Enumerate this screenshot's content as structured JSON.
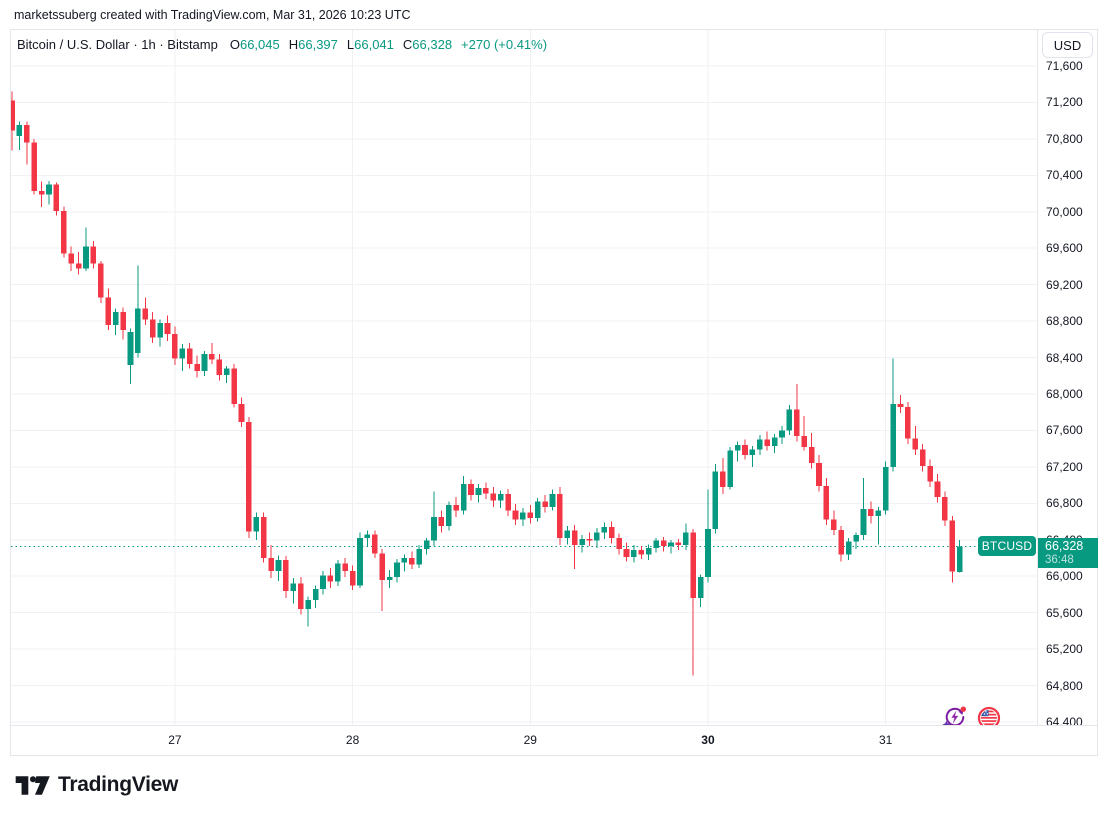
{
  "attribution": "marketssuberg created with TradingView.com, Mar 31, 2026 10:23 UTC",
  "legend": {
    "title": "Bitcoin / U.S. Dollar · 1h · Bitstamp",
    "items": [
      {
        "label": "O",
        "value": "66,045"
      },
      {
        "label": "H",
        "value": "66,397"
      },
      {
        "label": "L",
        "value": "66,041"
      },
      {
        "label": "C",
        "value": "66,328"
      }
    ],
    "change": "+270 (+0.41%)"
  },
  "price_scale": {
    "currency_button": "USD",
    "price_label": "66,328",
    "countdown": "36:48"
  },
  "symbol_badge": "BTCUSD",
  "logo_text": "TradingView",
  "icons": [
    "ai-refresh-bolt-icon",
    "us-flag-circle-icon"
  ],
  "chart_data": {
    "type": "candlestick",
    "title": "Bitcoin / U.S. Dollar",
    "symbol": "BTCUSD",
    "interval": "1h",
    "exchange": "Bitstamp",
    "currency": "USD",
    "current_candle": {
      "open": 66045,
      "high": 66397,
      "low": 66041,
      "close": 66328,
      "change": "+270",
      "change_pct": "+0.41%"
    },
    "last_price": 66328,
    "countdown": "36:48",
    "colors": {
      "up": "#089981",
      "down": "#F23645",
      "grid": "#F0F1F4",
      "price_line": "#089981",
      "badge": "#089981"
    },
    "y_axis": {
      "min": 64400,
      "max": 71600,
      "step": 400,
      "grid": true,
      "side": "right",
      "ticks": [
        {
          "v": 71600,
          "label": "71,600"
        },
        {
          "v": 71200,
          "label": "71,200"
        },
        {
          "v": 70800,
          "label": "70,800"
        },
        {
          "v": 70400,
          "label": "70,400"
        },
        {
          "v": 70000,
          "label": "70,000"
        },
        {
          "v": 69600,
          "label": "69,600"
        },
        {
          "v": 69200,
          "label": "69,200"
        },
        {
          "v": 68800,
          "label": "68,800"
        },
        {
          "v": 68400,
          "label": "68,400"
        },
        {
          "v": 68000,
          "label": "68,000"
        },
        {
          "v": 67600,
          "label": "67,600"
        },
        {
          "v": 67200,
          "label": "67,200"
        },
        {
          "v": 66800,
          "label": "66,800"
        },
        {
          "v": 66400,
          "label": "66,400"
        },
        {
          "v": 66000,
          "label": "66,000"
        },
        {
          "v": 65600,
          "label": "65,600"
        },
        {
          "v": 65200,
          "label": "65,200"
        },
        {
          "v": 64800,
          "label": "64,800"
        },
        {
          "v": 64400,
          "label": "64,400"
        }
      ]
    },
    "x_axis": {
      "unit": "day",
      "grid": true,
      "days": [
        {
          "label": "27",
          "index": 22,
          "bold": false
        },
        {
          "label": "28",
          "index": 46,
          "bold": false
        },
        {
          "label": "29",
          "index": 70,
          "bold": false
        },
        {
          "label": "30",
          "index": 94,
          "bold": true
        },
        {
          "label": "31",
          "index": 118,
          "bold": false
        }
      ]
    },
    "candles": [
      [
        71220,
        71320,
        70670,
        70890
      ],
      [
        70830,
        70990,
        70680,
        70950
      ],
      [
        70950,
        70990,
        70520,
        70760
      ],
      [
        70760,
        70800,
        70190,
        70230
      ],
      [
        70230,
        70330,
        70050,
        70190
      ],
      [
        70190,
        70340,
        70080,
        70300
      ],
      [
        70300,
        70320,
        69960,
        70010
      ],
      [
        70010,
        70060,
        69500,
        69540
      ],
      [
        69540,
        69620,
        69350,
        69430
      ],
      [
        69430,
        69560,
        69310,
        69380
      ],
      [
        69380,
        69830,
        69350,
        69620
      ],
      [
        69620,
        69680,
        69380,
        69430
      ],
      [
        69430,
        69460,
        69000,
        69060
      ],
      [
        69060,
        69160,
        68700,
        68760
      ],
      [
        68760,
        68940,
        68650,
        68900
      ],
      [
        68900,
        68950,
        68600,
        68700
      ],
      [
        68320,
        68720,
        68110,
        68680
      ],
      [
        68450,
        69410,
        68400,
        68940
      ],
      [
        68940,
        69060,
        68760,
        68820
      ],
      [
        68820,
        68900,
        68560,
        68620
      ],
      [
        68620,
        68820,
        68520,
        68780
      ],
      [
        68780,
        68860,
        68580,
        68660
      ],
      [
        68660,
        68740,
        68320,
        68390
      ],
      [
        68390,
        68550,
        68250,
        68500
      ],
      [
        68500,
        68560,
        68280,
        68330
      ],
      [
        68330,
        68420,
        68180,
        68250
      ],
      [
        68250,
        68470,
        68200,
        68440
      ],
      [
        68440,
        68560,
        68330,
        68380
      ],
      [
        68380,
        68440,
        68150,
        68210
      ],
      [
        68210,
        68310,
        68120,
        68280
      ],
      [
        68280,
        68330,
        67850,
        67890
      ],
      [
        67890,
        67960,
        67640,
        67690
      ],
      [
        67690,
        67750,
        66420,
        66490
      ],
      [
        66490,
        66700,
        66400,
        66650
      ],
      [
        66650,
        66700,
        66150,
        66200
      ],
      [
        66200,
        66340,
        65980,
        66060
      ],
      [
        66060,
        66230,
        65950,
        66180
      ],
      [
        66180,
        66220,
        65760,
        65840
      ],
      [
        65840,
        65980,
        65700,
        65920
      ],
      [
        65920,
        65990,
        65580,
        65640
      ],
      [
        65640,
        65780,
        65450,
        65740
      ],
      [
        65740,
        65900,
        65650,
        65860
      ],
      [
        65860,
        66060,
        65800,
        66010
      ],
      [
        66010,
        66090,
        65870,
        65940
      ],
      [
        65940,
        66180,
        65890,
        66140
      ],
      [
        66140,
        66200,
        65990,
        66060
      ],
      [
        66060,
        66120,
        65850,
        65900
      ],
      [
        65900,
        66480,
        65870,
        66420
      ],
      [
        66420,
        66500,
        66330,
        66460
      ],
      [
        66460,
        66500,
        66200,
        66250
      ],
      [
        66250,
        66300,
        65620,
        65960
      ],
      [
        65960,
        66070,
        65870,
        65990
      ],
      [
        65990,
        66190,
        65930,
        66150
      ],
      [
        66150,
        66240,
        66050,
        66200
      ],
      [
        66200,
        66270,
        66080,
        66130
      ],
      [
        66130,
        66340,
        66090,
        66300
      ],
      [
        66300,
        66420,
        66240,
        66390
      ],
      [
        66390,
        66930,
        66330,
        66650
      ],
      [
        66650,
        66720,
        66480,
        66550
      ],
      [
        66550,
        66820,
        66500,
        66780
      ],
      [
        66780,
        66870,
        66650,
        66720
      ],
      [
        66720,
        67100,
        66680,
        67010
      ],
      [
        67010,
        67060,
        66830,
        66890
      ],
      [
        66890,
        67010,
        66810,
        66970
      ],
      [
        66970,
        67030,
        66850,
        66910
      ],
      [
        66910,
        66980,
        66760,
        66830
      ],
      [
        66830,
        66940,
        66750,
        66900
      ],
      [
        66900,
        66960,
        66660,
        66720
      ],
      [
        66720,
        66790,
        66560,
        66620
      ],
      [
        66620,
        66750,
        66550,
        66700
      ],
      [
        66700,
        66780,
        66580,
        66640
      ],
      [
        66640,
        66860,
        66600,
        66820
      ],
      [
        66820,
        66890,
        66700,
        66760
      ],
      [
        66760,
        66950,
        66720,
        66900
      ],
      [
        66900,
        66980,
        66340,
        66420
      ],
      [
        66420,
        66550,
        66350,
        66500
      ],
      [
        66500,
        66560,
        66080,
        66340
      ],
      [
        66340,
        66450,
        66260,
        66410
      ],
      [
        66410,
        66480,
        66330,
        66390
      ],
      [
        66390,
        66530,
        66310,
        66480
      ],
      [
        66480,
        66590,
        66410,
        66540
      ],
      [
        66540,
        66600,
        66360,
        66420
      ],
      [
        66420,
        66470,
        66240,
        66300
      ],
      [
        66300,
        66370,
        66160,
        66210
      ],
      [
        66210,
        66340,
        66150,
        66290
      ],
      [
        66290,
        66330,
        66190,
        66240
      ],
      [
        66240,
        66350,
        66180,
        66310
      ],
      [
        66310,
        66420,
        66260,
        66390
      ],
      [
        66390,
        66430,
        66270,
        66330
      ],
      [
        66330,
        66400,
        66250,
        66370
      ],
      [
        66370,
        66410,
        66290,
        66340
      ],
      [
        66340,
        66580,
        66290,
        66480
      ],
      [
        66480,
        66520,
        64910,
        65760
      ],
      [
        65760,
        66020,
        65660,
        65990
      ],
      [
        65990,
        66950,
        65930,
        66520
      ],
      [
        66520,
        67230,
        66470,
        67150
      ],
      [
        67150,
        67300,
        66900,
        66980
      ],
      [
        66980,
        67420,
        66950,
        67380
      ],
      [
        67380,
        67480,
        67260,
        67440
      ],
      [
        67440,
        67500,
        67280,
        67330
      ],
      [
        67330,
        67430,
        67200,
        67390
      ],
      [
        67390,
        67550,
        67330,
        67500
      ],
      [
        67500,
        67590,
        67380,
        67430
      ],
      [
        67430,
        67560,
        67350,
        67520
      ],
      [
        67520,
        67650,
        67450,
        67600
      ],
      [
        67600,
        67880,
        67550,
        67830
      ],
      [
        67830,
        68110,
        67480,
        67540
      ],
      [
        67540,
        67760,
        67380,
        67420
      ],
      [
        67420,
        67570,
        67180,
        67240
      ],
      [
        67240,
        67330,
        66930,
        66990
      ],
      [
        66990,
        67080,
        66560,
        66620
      ],
      [
        66620,
        66720,
        66450,
        66510
      ],
      [
        66510,
        66550,
        66160,
        66240
      ],
      [
        66240,
        66420,
        66180,
        66380
      ],
      [
        66380,
        66480,
        66300,
        66450
      ],
      [
        66450,
        67080,
        66400,
        66740
      ],
      [
        66740,
        66820,
        66580,
        66660
      ],
      [
        66660,
        66760,
        66350,
        66720
      ],
      [
        66720,
        67260,
        66680,
        67200
      ],
      [
        67200,
        68390,
        67150,
        67890
      ],
      [
        67890,
        67990,
        67790,
        67860
      ],
      [
        67860,
        67910,
        67450,
        67510
      ],
      [
        67510,
        67650,
        67330,
        67390
      ],
      [
        67390,
        67450,
        67150,
        67210
      ],
      [
        67210,
        67280,
        66980,
        67040
      ],
      [
        67040,
        67120,
        66810,
        66870
      ],
      [
        66870,
        66930,
        66550,
        66610
      ],
      [
        66610,
        66660,
        65930,
        66050
      ],
      [
        66045,
        66397,
        66041,
        66328
      ]
    ]
  }
}
